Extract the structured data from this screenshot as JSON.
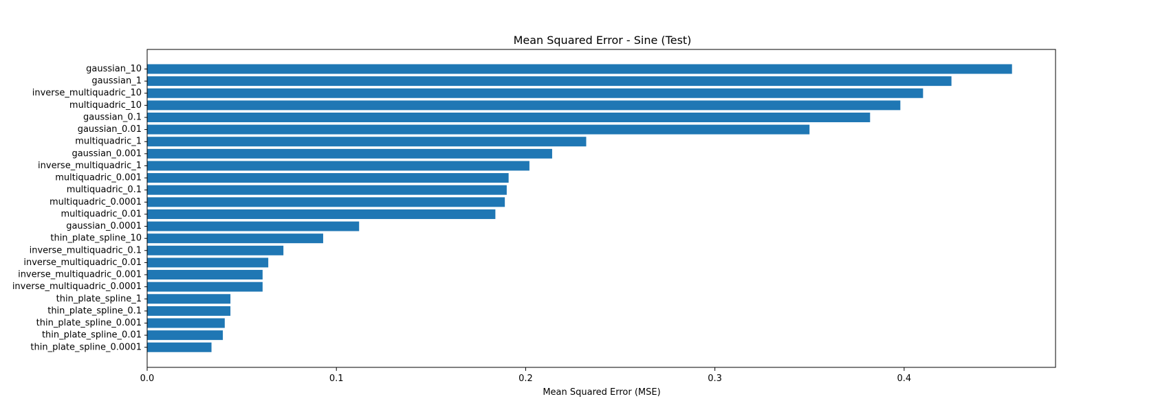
{
  "chart_data": {
    "type": "bar",
    "orientation": "horizontal",
    "title": "Mean Squared Error - Sine (Test)",
    "xlabel": "Mean Squared Error (MSE)",
    "ylabel": "",
    "xlim": [
      0,
      0.48
    ],
    "xticks": [
      0.0,
      0.1,
      0.2,
      0.3,
      0.4
    ],
    "xtick_labels": [
      "0.0",
      "0.1",
      "0.2",
      "0.3",
      "0.4"
    ],
    "grid": false,
    "bar_color": "#1f77b4",
    "categories": [
      "gaussian_10",
      "gaussian_1",
      "inverse_multiquadric_10",
      "multiquadric_10",
      "gaussian_0.1",
      "gaussian_0.01",
      "multiquadric_1",
      "gaussian_0.001",
      "inverse_multiquadric_1",
      "multiquadric_0.001",
      "multiquadric_0.1",
      "multiquadric_0.0001",
      "multiquadric_0.01",
      "gaussian_0.0001",
      "thin_plate_spline_10",
      "inverse_multiquadric_0.1",
      "inverse_multiquadric_0.01",
      "inverse_multiquadric_0.001",
      "inverse_multiquadric_0.0001",
      "thin_plate_spline_1",
      "thin_plate_spline_0.1",
      "thin_plate_spline_0.001",
      "thin_plate_spline_0.01",
      "thin_plate_spline_0.0001"
    ],
    "values": [
      0.457,
      0.425,
      0.41,
      0.398,
      0.382,
      0.35,
      0.232,
      0.214,
      0.202,
      0.191,
      0.19,
      0.189,
      0.184,
      0.112,
      0.093,
      0.072,
      0.064,
      0.061,
      0.061,
      0.044,
      0.044,
      0.041,
      0.04,
      0.034
    ]
  }
}
